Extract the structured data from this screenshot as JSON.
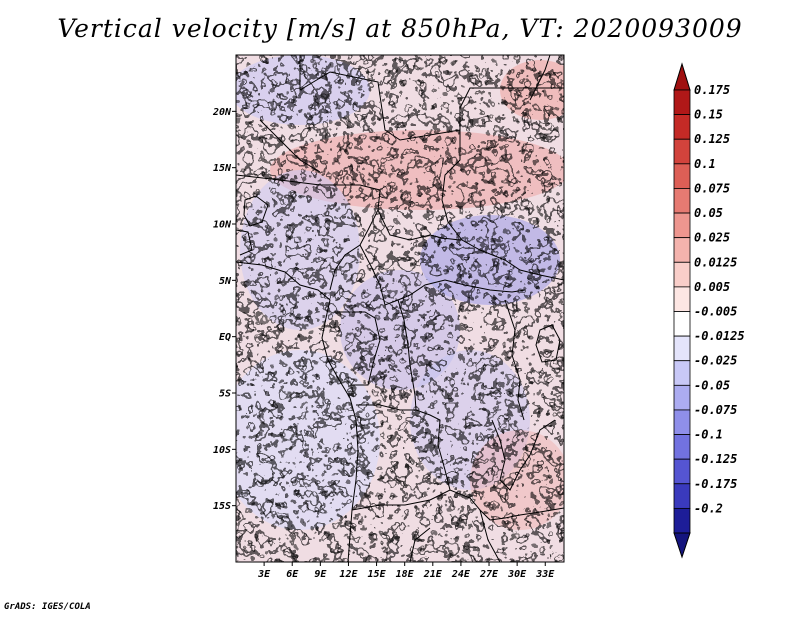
{
  "title": "Vertical velocity [m/s] at 850hPa, VT: 2020093009",
  "credit": "GrADS: IGES/COLA",
  "map": {
    "lon_range": [
      0,
      35
    ],
    "lat_range": [
      -20,
      25
    ],
    "lat_ticks": [
      {
        "value": 20,
        "label": "20N"
      },
      {
        "value": 15,
        "label": "15N"
      },
      {
        "value": 10,
        "label": "10N"
      },
      {
        "value": 5,
        "label": "5N"
      },
      {
        "value": 0,
        "label": "EQ"
      },
      {
        "value": -5,
        "label": "5S"
      },
      {
        "value": -10,
        "label": "10S"
      },
      {
        "value": -15,
        "label": "15S"
      }
    ],
    "lon_ticks": [
      {
        "value": 3,
        "label": "3E"
      },
      {
        "value": 6,
        "label": "6E"
      },
      {
        "value": 9,
        "label": "9E"
      },
      {
        "value": 12,
        "label": "12E"
      },
      {
        "value": 15,
        "label": "15E"
      },
      {
        "value": 18,
        "label": "18E"
      },
      {
        "value": 21,
        "label": "21E"
      },
      {
        "value": 24,
        "label": "24E"
      },
      {
        "value": 27,
        "label": "27E"
      },
      {
        "value": 30,
        "label": "30E"
      },
      {
        "value": 33,
        "label": "33E"
      }
    ]
  },
  "colorbar": {
    "levels": [
      {
        "label": "0.175",
        "color": "#b01818"
      },
      {
        "label": "0.15",
        "color": "#c42a26"
      },
      {
        "label": "0.125",
        "color": "#d2433c"
      },
      {
        "label": "0.1",
        "color": "#dd5f56"
      },
      {
        "label": "0.075",
        "color": "#e67a72"
      },
      {
        "label": "0.05",
        "color": "#ee968f"
      },
      {
        "label": "0.025",
        "color": "#f4b3ad"
      },
      {
        "label": "0.0125",
        "color": "#f9cec9"
      },
      {
        "label": "0.005",
        "color": "#fde6e3"
      },
      {
        "label": "-0.005",
        "color": "#ffffff"
      },
      {
        "label": "-0.0125",
        "color": "#e4e4fb"
      },
      {
        "label": "-0.025",
        "color": "#c8c8f7"
      },
      {
        "label": "-0.05",
        "color": "#acacf1"
      },
      {
        "label": "-0.075",
        "color": "#8f8fea"
      },
      {
        "label": "-0.1",
        "color": "#7272e0"
      },
      {
        "label": "-0.125",
        "color": "#5555d2"
      },
      {
        "label": "-0.175",
        "color": "#3a3abd"
      },
      {
        "label": "-0.2",
        "color": "#1d1d98"
      }
    ],
    "top_arrow_color": "#a01010",
    "bottom_arrow_color": "#14147e"
  }
}
